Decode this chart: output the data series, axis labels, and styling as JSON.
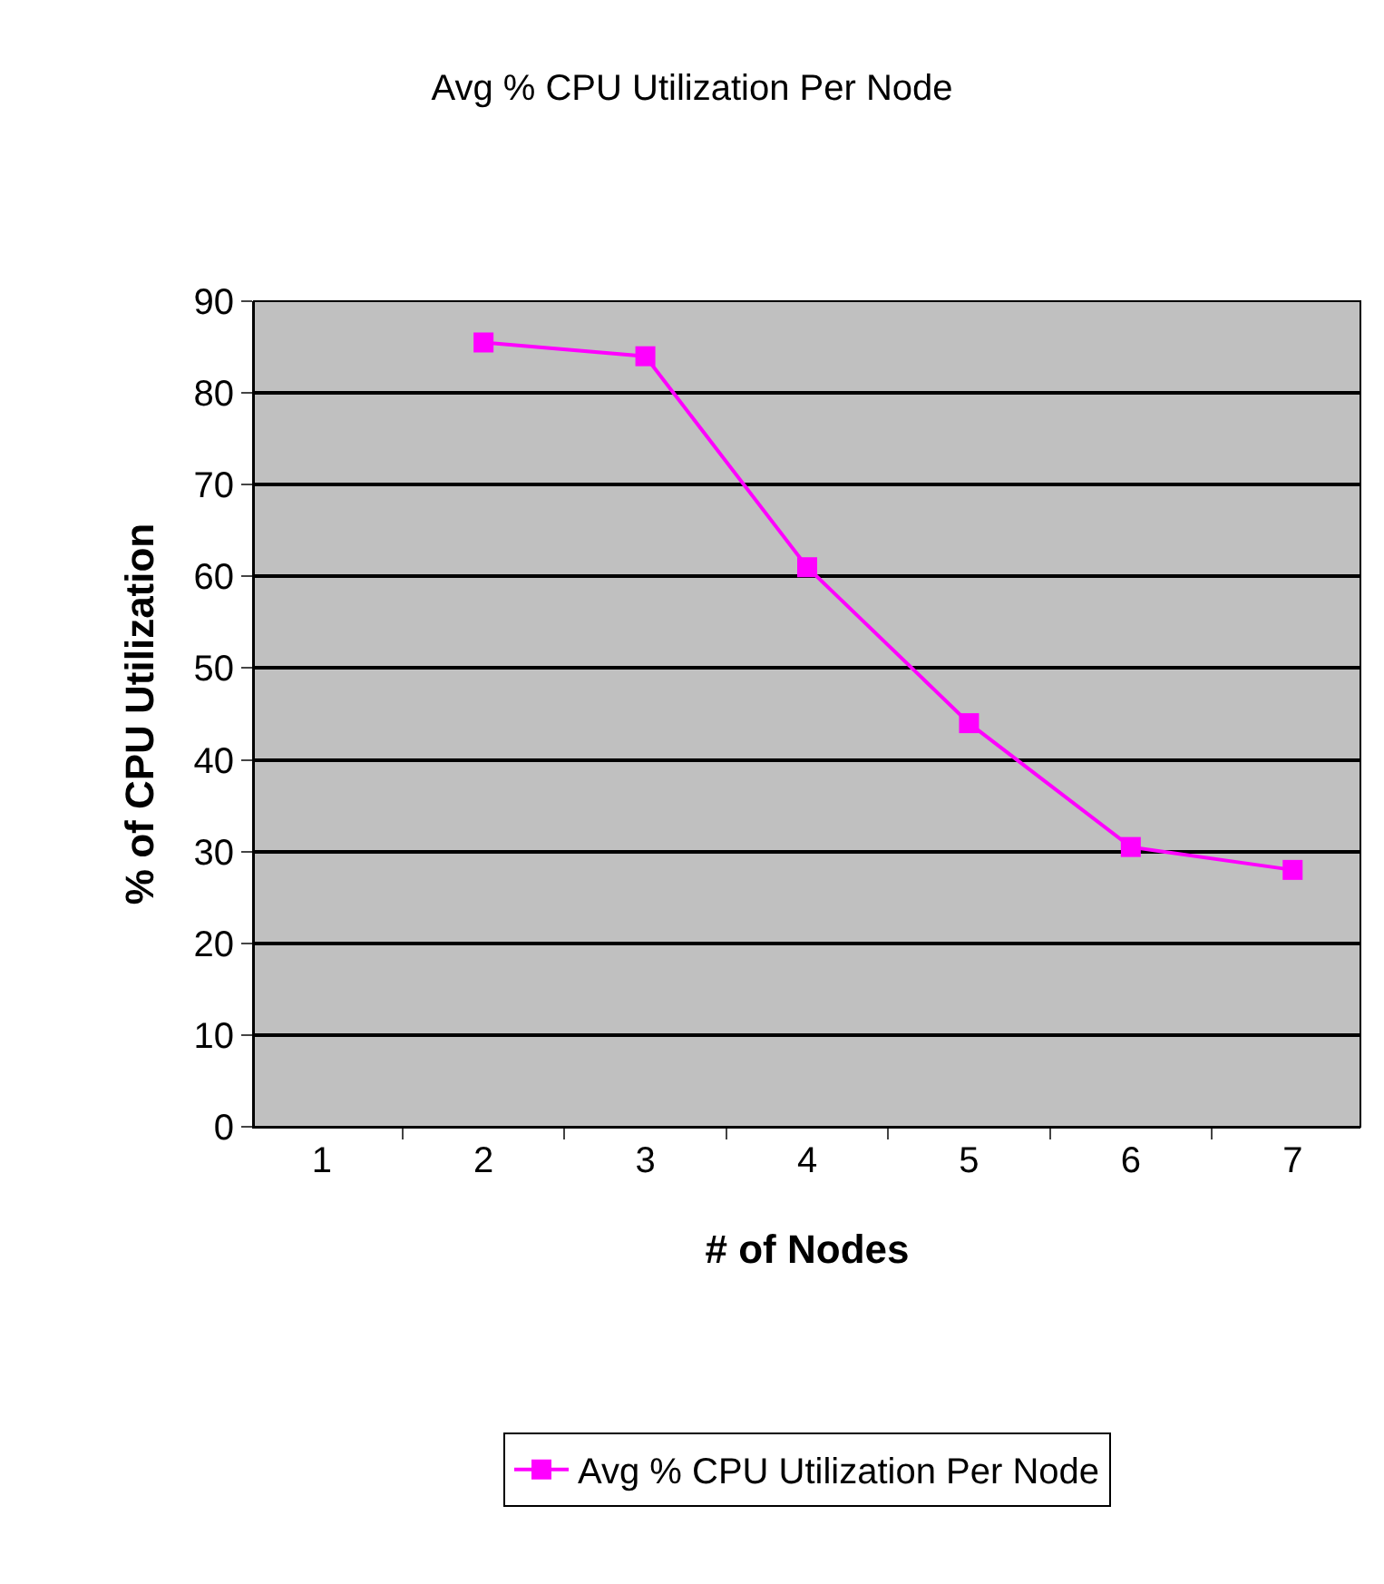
{
  "chart_data": {
    "type": "line",
    "title": "Avg % CPU Utilization Per Node",
    "xlabel": "# of Nodes",
    "ylabel": "% of CPU Utilization",
    "categories": [
      "1",
      "2",
      "3",
      "4",
      "5",
      "6",
      "7"
    ],
    "series": [
      {
        "name": "Avg % CPU Utilization Per Node",
        "color": "#ff00ff",
        "values": [
          null,
          85.5,
          84,
          61,
          44,
          30.5,
          28
        ]
      }
    ],
    "ylim": [
      0,
      90
    ],
    "yticks": [
      0,
      10,
      20,
      30,
      40,
      50,
      60,
      70,
      80,
      90
    ],
    "grid": "y",
    "legend": "bottom",
    "marker": "square",
    "line_style": "solid"
  }
}
